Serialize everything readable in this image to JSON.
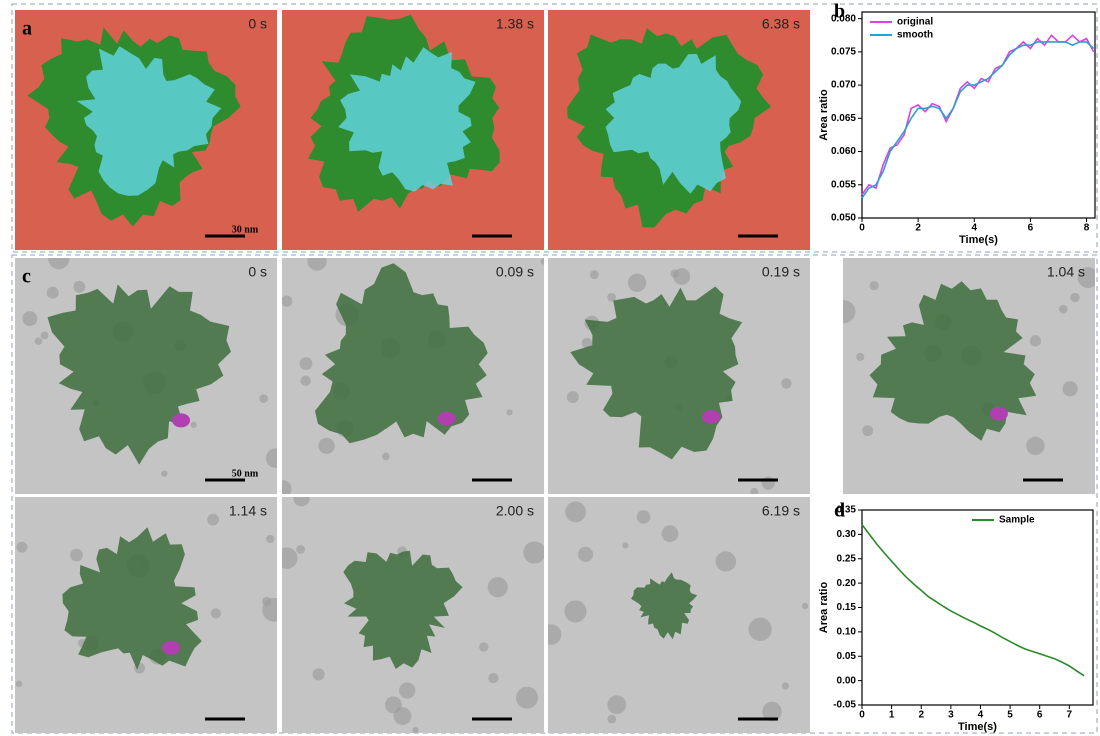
{
  "panels": {
    "a": {
      "label": "a",
      "frames": [
        "0 s",
        "1.38 s",
        "6.38 s"
      ],
      "scale_bar": "30 nm"
    },
    "c": {
      "label": "c",
      "frames": [
        "0 s",
        "0.09 s",
        "0.19 s",
        "1.04 s",
        "1.14 s",
        "2.00 s",
        "6.19 s"
      ],
      "scale_bar": "50 nm"
    }
  },
  "chart_data": [
    {
      "type": "line",
      "panel_label": "b",
      "x_label": "Time(s)",
      "y_label": "Area ratio",
      "x": [
        0,
        0.25,
        0.5,
        0.75,
        1,
        1.25,
        1.5,
        1.75,
        2,
        2.25,
        2.5,
        2.75,
        3,
        3.25,
        3.5,
        3.75,
        4,
        4.25,
        4.5,
        4.75,
        5,
        5.25,
        5.5,
        5.75,
        6,
        6.25,
        6.5,
        6.75,
        7,
        7.25,
        7.5,
        7.75,
        8,
        8.25
      ],
      "series": [
        {
          "name": "original",
          "color": "#e040e0",
          "values": [
            0.0535,
            0.055,
            0.0545,
            0.058,
            0.0605,
            0.061,
            0.0625,
            0.0665,
            0.067,
            0.066,
            0.0672,
            0.0668,
            0.0645,
            0.0665,
            0.0695,
            0.0705,
            0.0695,
            0.071,
            0.0705,
            0.0725,
            0.073,
            0.075,
            0.0755,
            0.0765,
            0.0755,
            0.077,
            0.076,
            0.0775,
            0.0765,
            0.0765,
            0.0775,
            0.0765,
            0.077,
            0.075
          ]
        },
        {
          "name": "smooth",
          "color": "#2aa0d0",
          "values": [
            0.053,
            0.0545,
            0.055,
            0.057,
            0.06,
            0.0615,
            0.063,
            0.065,
            0.0665,
            0.0665,
            0.0668,
            0.0665,
            0.065,
            0.0665,
            0.069,
            0.07,
            0.07,
            0.0705,
            0.071,
            0.072,
            0.073,
            0.0745,
            0.0755,
            0.076,
            0.076,
            0.0765,
            0.0765,
            0.0765,
            0.0765,
            0.0765,
            0.076,
            0.0765,
            0.0765,
            0.0755
          ]
        }
      ],
      "xlim": [
        0,
        8.3
      ],
      "ylim": [
        0.05,
        0.081
      ],
      "xticks": [
        0,
        2,
        4,
        6,
        8
      ],
      "yticks": [
        {
          "value": 0.05,
          "label": "0.050"
        },
        0.055,
        {
          "value": 0.06,
          "label": "0.060"
        },
        0.065,
        {
          "value": 0.07,
          "label": "0.070"
        },
        0.075,
        {
          "value": 0.08,
          "label": "0.080"
        }
      ],
      "legend": "top-left"
    },
    {
      "type": "line",
      "panel_label": "d",
      "x_label": "Time(s)",
      "y_label": "Area ratio",
      "x": [
        0,
        0.25,
        0.5,
        0.75,
        1,
        1.25,
        1.5,
        1.75,
        2,
        2.25,
        2.5,
        2.75,
        3,
        3.25,
        3.5,
        3.75,
        4,
        4.25,
        4.5,
        4.75,
        5,
        5.25,
        5.5,
        5.75,
        6,
        6.25,
        6.5,
        6.75,
        7,
        7.25,
        7.5
      ],
      "series": [
        {
          "name": "Sample",
          "color": "#2a8a2a",
          "values": [
            0.32,
            0.3,
            0.28,
            0.262,
            0.245,
            0.228,
            0.212,
            0.198,
            0.185,
            0.172,
            0.162,
            0.152,
            0.143,
            0.135,
            0.127,
            0.12,
            0.112,
            0.105,
            0.097,
            0.088,
            0.08,
            0.072,
            0.065,
            0.06,
            0.055,
            0.05,
            0.045,
            0.038,
            0.03,
            0.02,
            0.01
          ]
        }
      ],
      "xlim": [
        0,
        7.8
      ],
      "ylim": [
        -0.05,
        0.35
      ],
      "xticks": [
        0,
        1,
        2,
        3,
        4,
        5,
        6,
        7
      ],
      "yticks": [
        -0.05,
        {
          "value": 0,
          "label": "0.00"
        },
        0.05,
        {
          "value": 0.1,
          "label": "0.10"
        },
        0.15,
        {
          "value": 0.2,
          "label": "0.20"
        },
        0.25,
        {
          "value": 0.3,
          "label": "0.30"
        },
        0.35
      ],
      "legend": "top-right"
    }
  ]
}
